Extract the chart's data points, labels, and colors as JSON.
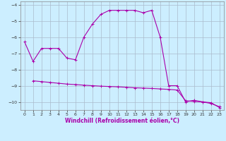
{
  "xlabel": "Windchill (Refroidissement éolien,°C)",
  "bg_color": "#cceeff",
  "grid_color": "#aabbcc",
  "line_color": "#aa00aa",
  "line1_x": [
    0,
    1,
    2,
    3,
    4,
    5,
    6,
    7,
    8,
    9,
    10,
    11,
    12,
    13,
    14,
    15,
    16,
    17,
    18,
    19,
    20,
    21,
    22,
    23
  ],
  "line1_y": [
    -6.3,
    -7.5,
    -6.7,
    -6.7,
    -6.7,
    -7.3,
    -7.4,
    -6.0,
    -5.2,
    -4.6,
    -4.35,
    -4.35,
    -4.35,
    -4.35,
    -4.5,
    -4.35,
    -6.0,
    -9.0,
    -9.0,
    -10.0,
    -9.9,
    -10.0,
    -10.1,
    -10.3
  ],
  "line2_x": [
    1,
    2,
    3,
    4,
    5,
    6,
    7,
    8,
    9,
    10,
    11,
    12,
    13,
    14,
    15,
    16,
    17,
    18,
    19,
    20,
    21,
    22,
    23
  ],
  "line2_y": [
    -8.7,
    -8.75,
    -8.8,
    -8.85,
    -8.9,
    -8.93,
    -8.97,
    -9.0,
    -9.03,
    -9.05,
    -9.07,
    -9.1,
    -9.13,
    -9.15,
    -9.17,
    -9.2,
    -9.23,
    -9.27,
    -9.93,
    -9.97,
    -10.0,
    -10.05,
    -10.35
  ],
  "ylim": [
    -10.5,
    -3.8
  ],
  "xlim": [
    -0.5,
    23.5
  ],
  "yticks": [
    -10,
    -9,
    -8,
    -7,
    -6,
    -5,
    -4
  ],
  "xticks": [
    0,
    1,
    2,
    3,
    4,
    5,
    6,
    7,
    8,
    9,
    10,
    11,
    12,
    13,
    14,
    15,
    16,
    17,
    18,
    19,
    20,
    21,
    22,
    23
  ],
  "tick_fontsize": 4.5,
  "xlabel_fontsize": 5.5
}
